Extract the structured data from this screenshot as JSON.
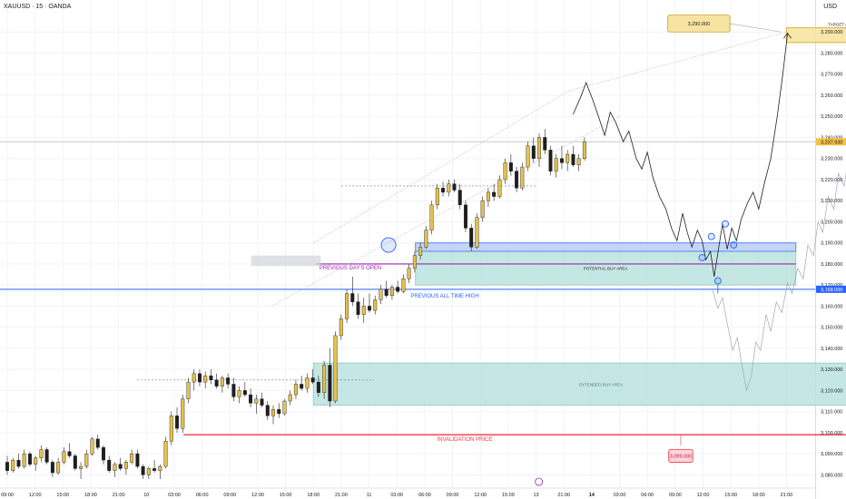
{
  "header": {
    "symbol": "XAUUSD · 15 · OANDA",
    "currency": "USD"
  },
  "colors": {
    "grid": "#f0f3fa",
    "axis_text": "#131722",
    "candle_up": "#e5c04f",
    "candle_down": "#1f1f1f",
    "blue": "#2962ff",
    "purple": "#9c27b0",
    "red": "#f23645",
    "zone_green": "#b2dfdb",
    "zone_blue": "#a9c4f8",
    "target": "#f7e3a1"
  },
  "chart_data": {
    "type": "candlestick",
    "ylim": [
      3074,
      3302
    ],
    "y_ticks": [
      3080,
      3090,
      3100,
      3110,
      3120,
      3130,
      3140,
      3150,
      3160,
      3170,
      3180,
      3190,
      3200,
      3210,
      3220,
      3230,
      3240,
      3250,
      3260,
      3270,
      3280,
      3290
    ],
    "y_tick_labels": [
      "3,080.000",
      "3,090.000",
      "3,100.000",
      "3,110.000",
      "3,120.000",
      "3,130.000",
      "3,140.000",
      "3,150.000",
      "3,160.000",
      "3,170.000",
      "3,180.000",
      "3,190.000",
      "3,200.000",
      "3,210.000",
      "3,220.000",
      "3,230.000",
      "3,240.000",
      "3,250.000",
      "3,260.000",
      "3,270.000",
      "3,280.000",
      "3,290.000"
    ],
    "x_ticks": [
      "09:00",
      "12:00",
      "15:00",
      "18:00",
      "21:00",
      "10",
      "03:00",
      "06:00",
      "09:00",
      "12:00",
      "15:00",
      "18:00",
      "21:00",
      "11",
      "03:00",
      "06:00",
      "09:00",
      "12:00",
      "15:00",
      "13",
      "21:00",
      "14",
      "03:00",
      "06:00",
      "09:00",
      "12:00",
      "15:00",
      "18:00",
      "21:00"
    ],
    "x_tick_t": [
      0,
      3,
      6,
      9,
      12,
      15,
      18,
      21,
      24,
      27,
      30,
      33,
      36,
      39,
      42,
      45,
      48,
      51,
      54,
      57,
      60,
      63,
      66,
      69,
      72,
      75,
      78,
      81,
      84
    ],
    "bold_x_ticks": [
      "14"
    ],
    "price_now": 3237.93,
    "price_now_label": "3,237.930",
    "candles": [
      [
        3086,
        3089,
        3080,
        3082
      ],
      [
        3082,
        3088,
        3081,
        3087
      ],
      [
        3087,
        3090,
        3083,
        3084
      ],
      [
        3084,
        3092,
        3083,
        3090
      ],
      [
        3090,
        3091,
        3084,
        3085
      ],
      [
        3085,
        3089,
        3082,
        3088
      ],
      [
        3088,
        3094,
        3086,
        3092
      ],
      [
        3092,
        3093,
        3085,
        3086
      ],
      [
        3086,
        3087,
        3079,
        3081
      ],
      [
        3081,
        3088,
        3080,
        3086
      ],
      [
        3086,
        3093,
        3085,
        3091
      ],
      [
        3091,
        3095,
        3088,
        3089
      ],
      [
        3089,
        3090,
        3082,
        3083
      ],
      [
        3083,
        3086,
        3078,
        3084
      ],
      [
        3084,
        3092,
        3083,
        3090
      ],
      [
        3090,
        3098,
        3089,
        3097
      ],
      [
        3097,
        3099,
        3092,
        3093
      ],
      [
        3093,
        3094,
        3085,
        3087
      ],
      [
        3087,
        3089,
        3081,
        3082
      ],
      [
        3082,
        3086,
        3079,
        3085
      ],
      [
        3085,
        3088,
        3082,
        3083
      ],
      [
        3083,
        3087,
        3080,
        3086
      ],
      [
        3086,
        3092,
        3085,
        3090
      ],
      [
        3090,
        3092,
        3083,
        3084
      ],
      [
        3084,
        3085,
        3078,
        3080
      ],
      [
        3080,
        3084,
        3078,
        3083
      ],
      [
        3083,
        3087,
        3081,
        3082
      ],
      [
        3082,
        3085,
        3078,
        3084
      ],
      [
        3084,
        3098,
        3083,
        3096
      ],
      [
        3096,
        3110,
        3094,
        3108
      ],
      [
        3108,
        3112,
        3100,
        3102
      ],
      [
        3102,
        3118,
        3100,
        3116
      ],
      [
        3116,
        3126,
        3114,
        3124
      ],
      [
        3124,
        3130,
        3120,
        3128
      ],
      [
        3128,
        3130,
        3122,
        3124
      ],
      [
        3124,
        3129,
        3121,
        3127
      ],
      [
        3127,
        3130,
        3123,
        3125
      ],
      [
        3125,
        3128,
        3121,
        3122
      ],
      [
        3122,
        3127,
        3119,
        3126
      ],
      [
        3126,
        3128,
        3121,
        3123
      ],
      [
        3123,
        3126,
        3115,
        3117
      ],
      [
        3117,
        3122,
        3114,
        3120
      ],
      [
        3120,
        3124,
        3117,
        3118
      ],
      [
        3118,
        3121,
        3112,
        3114
      ],
      [
        3114,
        3118,
        3109,
        3116
      ],
      [
        3116,
        3119,
        3112,
        3113
      ],
      [
        3113,
        3115,
        3106,
        3108
      ],
      [
        3108,
        3113,
        3104,
        3111
      ],
      [
        3111,
        3114,
        3107,
        3109
      ],
      [
        3109,
        3116,
        3108,
        3115
      ],
      [
        3115,
        3120,
        3113,
        3118
      ],
      [
        3118,
        3125,
        3116,
        3123
      ],
      [
        3123,
        3127,
        3120,
        3121
      ],
      [
        3121,
        3128,
        3119,
        3126
      ],
      [
        3126,
        3130,
        3123,
        3124
      ],
      [
        3124,
        3127,
        3117,
        3119
      ],
      [
        3119,
        3134,
        3116,
        3132
      ],
      [
        3132,
        3140,
        3112,
        3115
      ],
      [
        3115,
        3148,
        3114,
        3146
      ],
      [
        3146,
        3156,
        3144,
        3154
      ],
      [
        3154,
        3168,
        3152,
        3166
      ],
      [
        3166,
        3174,
        3160,
        3162
      ],
      [
        3162,
        3166,
        3154,
        3156
      ],
      [
        3156,
        3164,
        3152,
        3160
      ],
      [
        3160,
        3166,
        3157,
        3158
      ],
      [
        3158,
        3165,
        3156,
        3163
      ],
      [
        3163,
        3170,
        3161,
        3168
      ],
      [
        3168,
        3172,
        3164,
        3165
      ],
      [
        3165,
        3170,
        3163,
        3169
      ],
      [
        3169,
        3172,
        3166,
        3167
      ],
      [
        3167,
        3175,
        3166,
        3173
      ],
      [
        3173,
        3180,
        3171,
        3178
      ],
      [
        3178,
        3186,
        3176,
        3184
      ],
      [
        3184,
        3190,
        3182,
        3188
      ],
      [
        3188,
        3198,
        3187,
        3196
      ],
      [
        3196,
        3210,
        3194,
        3208
      ],
      [
        3208,
        3218,
        3206,
        3216
      ],
      [
        3216,
        3219,
        3212,
        3214
      ],
      [
        3214,
        3220,
        3212,
        3218
      ],
      [
        3218,
        3220,
        3214,
        3215
      ],
      [
        3215,
        3218,
        3206,
        3208
      ],
      [
        3208,
        3210,
        3195,
        3197
      ],
      [
        3197,
        3199,
        3186,
        3188
      ],
      [
        3188,
        3204,
        3187,
        3202
      ],
      [
        3202,
        3212,
        3200,
        3210
      ],
      [
        3210,
        3216,
        3207,
        3214
      ],
      [
        3214,
        3218,
        3210,
        3212
      ],
      [
        3212,
        3222,
        3211,
        3220
      ],
      [
        3220,
        3230,
        3218,
        3228
      ],
      [
        3228,
        3232,
        3222,
        3224
      ],
      [
        3224,
        3226,
        3214,
        3216
      ],
      [
        3216,
        3228,
        3215,
        3226
      ],
      [
        3226,
        3238,
        3224,
        3236
      ],
      [
        3236,
        3240,
        3228,
        3230
      ],
      [
        3230,
        3242,
        3226,
        3240
      ],
      [
        3240,
        3244,
        3232,
        3234
      ],
      [
        3234,
        3236,
        3222,
        3224
      ],
      [
        3224,
        3232,
        3221,
        3230
      ],
      [
        3230,
        3236,
        3225,
        3228
      ],
      [
        3228,
        3234,
        3224,
        3232
      ],
      [
        3232,
        3236,
        3226,
        3227
      ],
      [
        3227,
        3232,
        3224,
        3230
      ],
      [
        3230,
        3240,
        3229,
        3238
      ]
    ],
    "projection_black": [
      [
        61,
        3251
      ],
      [
        61.8,
        3259
      ],
      [
        62.4,
        3266
      ],
      [
        63.1,
        3258
      ],
      [
        63.8,
        3249
      ],
      [
        64.4,
        3241
      ],
      [
        65,
        3252
      ],
      [
        65.6,
        3247
      ],
      [
        66.4,
        3238
      ],
      [
        67,
        3243
      ],
      [
        67.8,
        3230
      ],
      [
        68.4,
        3225
      ],
      [
        69,
        3233
      ],
      [
        69.6,
        3221
      ],
      [
        70.3,
        3212
      ],
      [
        71,
        3206
      ],
      [
        71.6,
        3197
      ],
      [
        72.2,
        3191
      ],
      [
        72.8,
        3204
      ],
      [
        73.3,
        3195
      ],
      [
        73.8,
        3188
      ],
      [
        74.4,
        3196
      ],
      [
        74.9,
        3191
      ],
      [
        75.3,
        3182
      ],
      [
        75.8,
        3186
      ],
      [
        76.2,
        3174
      ],
      [
        76.7,
        3188
      ],
      [
        77.1,
        3199
      ],
      [
        77.6,
        3187
      ],
      [
        78.1,
        3197
      ],
      [
        78.6,
        3191
      ],
      [
        79.1,
        3201
      ],
      [
        79.8,
        3209
      ],
      [
        80.4,
        3214
      ],
      [
        81,
        3206
      ],
      [
        81.6,
        3218
      ],
      [
        82.3,
        3230
      ],
      [
        83,
        3250
      ],
      [
        83.6,
        3270
      ],
      [
        84.1,
        3289
      ]
    ],
    "projection_gray": [
      [
        76,
        3168
      ],
      [
        76.6,
        3159
      ],
      [
        77.1,
        3164
      ],
      [
        77.6,
        3152
      ],
      [
        78.2,
        3139
      ],
      [
        78.7,
        3145
      ],
      [
        79.2,
        3132
      ],
      [
        79.7,
        3120
      ],
      [
        80.2,
        3127
      ],
      [
        80.7,
        3143
      ],
      [
        81.2,
        3139
      ],
      [
        81.8,
        3156
      ],
      [
        82.3,
        3148
      ],
      [
        82.9,
        3162
      ],
      [
        83.5,
        3157
      ],
      [
        84.1,
        3171
      ],
      [
        84.6,
        3166
      ],
      [
        85.2,
        3178
      ],
      [
        85.8,
        3173
      ],
      [
        86.3,
        3189
      ],
      [
        86.9,
        3184
      ],
      [
        87.4,
        3200
      ],
      [
        87.9,
        3195
      ],
      [
        88.5,
        3212
      ],
      [
        89.1,
        3206
      ],
      [
        89.6,
        3223
      ],
      [
        90.2,
        3217
      ],
      [
        90.8,
        3233
      ],
      [
        91.3,
        3228
      ],
      [
        91.8,
        3237
      ],
      [
        92.3,
        3232
      ],
      [
        92.8,
        3239
      ],
      [
        93.2,
        3236
      ],
      [
        93.7,
        3240
      ],
      [
        94.2,
        3264
      ],
      [
        94.8,
        3289
      ]
    ],
    "zones": [
      {
        "name": "target-area",
        "label": "TARGET AREA",
        "t0": 84,
        "t1": 96,
        "y0": 3285,
        "y1": 3292
      },
      {
        "name": "extended-buy-area",
        "label": "EXTENDED BUY AREA",
        "t0": 33,
        "t1": 95,
        "y0": 3113,
        "y1": 3133
      },
      {
        "name": "potential-buy-area",
        "label": "POTENTIAL BUY AREA",
        "t0": 44,
        "t1": 85,
        "y0": 3170,
        "y1": 3186
      },
      {
        "name": "buy-area-upper",
        "label": "",
        "t0": 44,
        "t1": 85,
        "y0": 3186,
        "y1": 3190
      }
    ],
    "levels": [
      {
        "name": "previous-all-time-high",
        "label": "PREVIOUS ALL TIME HIGH",
        "y": 3168,
        "price_label": "3,168.000",
        "color": "#2962ff"
      },
      {
        "name": "previous-days-open",
        "label": "PREVIOUS DAY'S OPEN",
        "y": 3180,
        "color": "#9c27b0"
      },
      {
        "name": "invalidation-price",
        "label": "INVALIDATION PRICE",
        "y": 3099,
        "price_label": "3,099.000",
        "color": "#f23645"
      }
    ],
    "target_price_label": "3,290.000"
  }
}
